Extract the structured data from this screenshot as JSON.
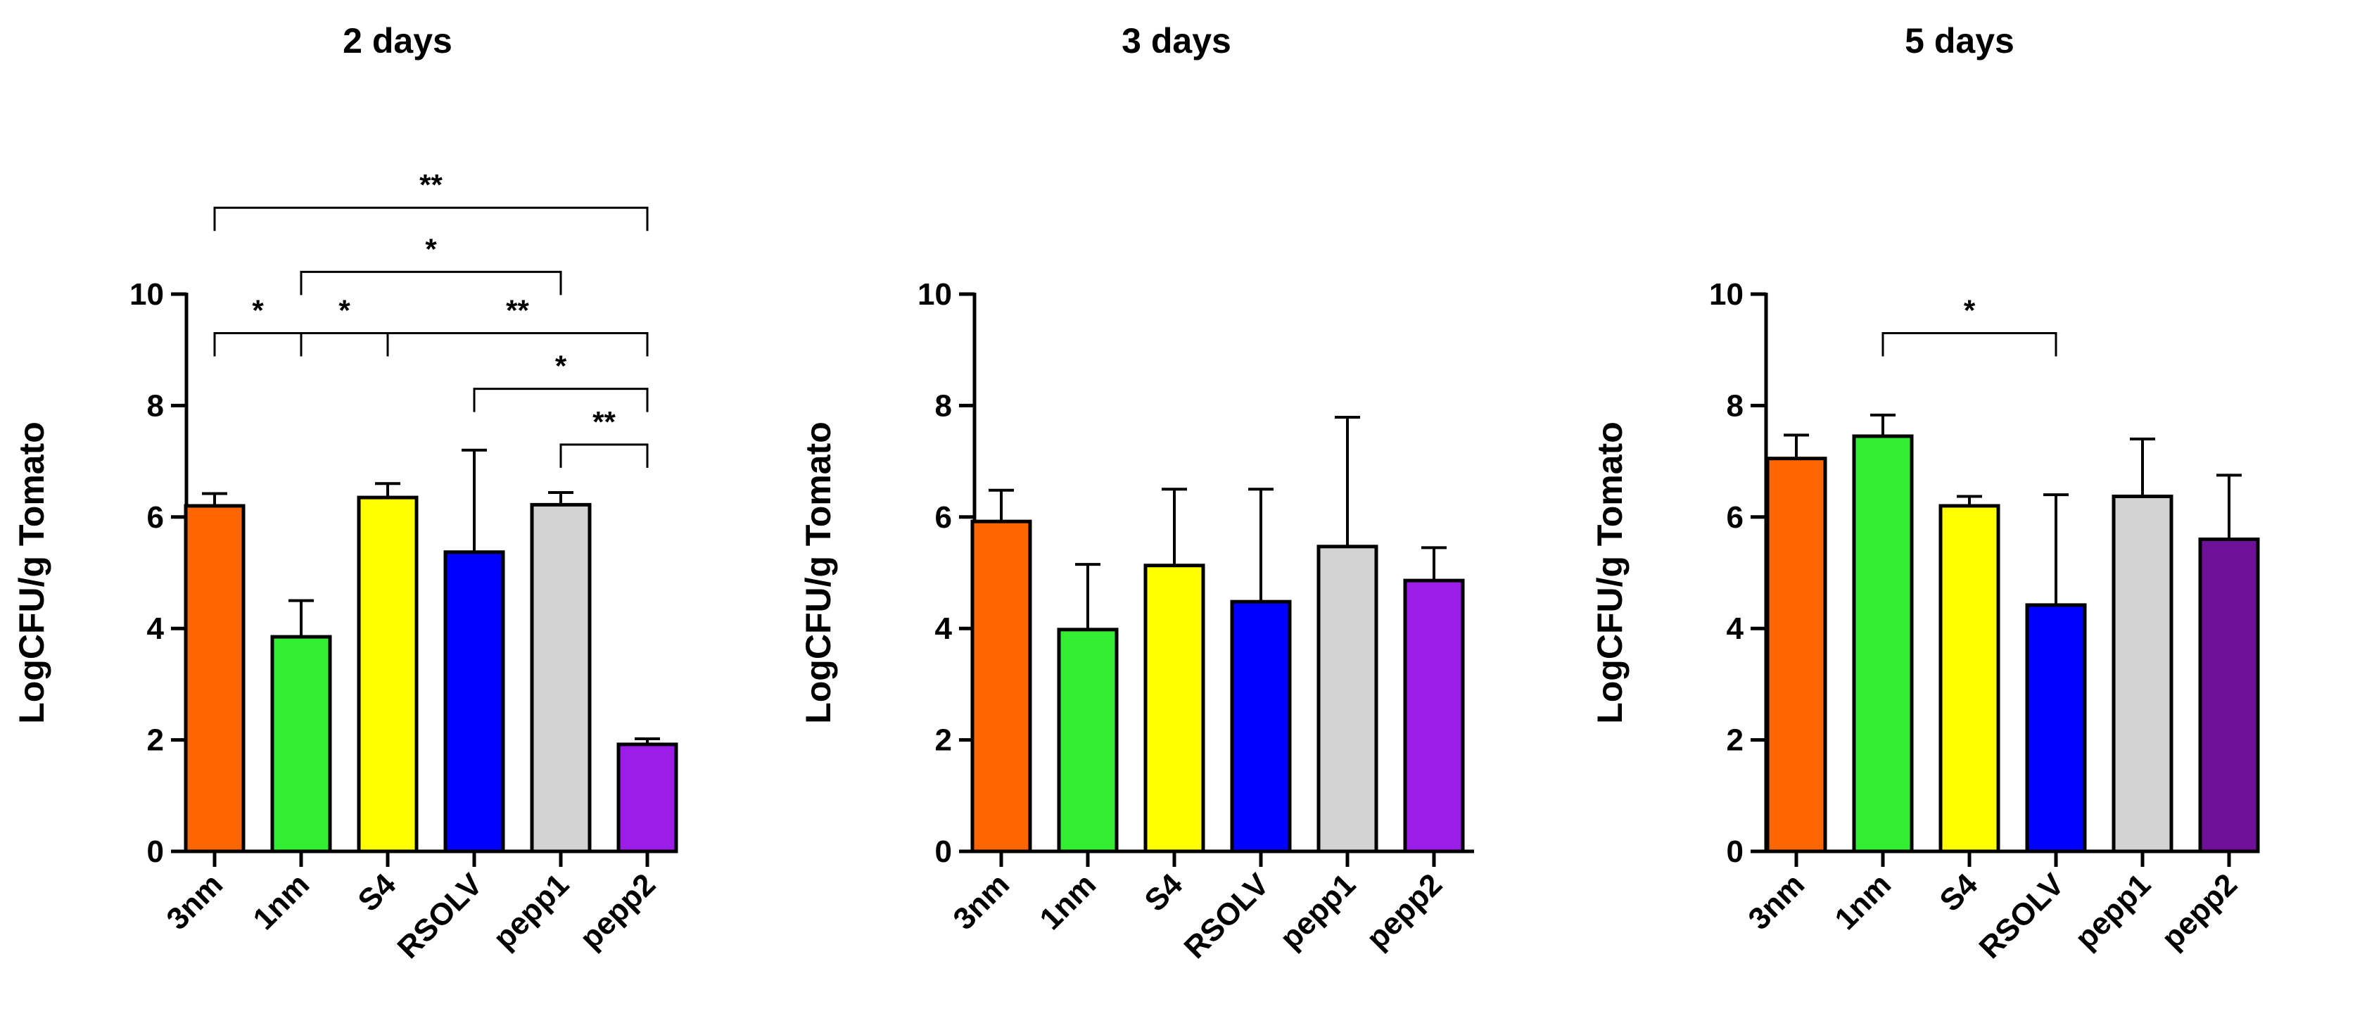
{
  "chart_data": [
    {
      "type": "bar",
      "title": "2 days",
      "xlabel": "",
      "ylabel": "LogCFU/g Tomato",
      "ylim": [
        0,
        10
      ],
      "yticks": [
        0,
        2,
        4,
        6,
        8,
        10
      ],
      "categories": [
        "3nm",
        "1nm",
        "S4",
        "RSOLV",
        "pepp1",
        "pepp2"
      ],
      "values": [
        6.2,
        3.85,
        6.35,
        5.37,
        6.22,
        1.92
      ],
      "errors": [
        0.22,
        0.65,
        0.25,
        1.83,
        0.22,
        0.1
      ],
      "colors": [
        "#ff6600",
        "#33ee33",
        "#ffff00",
        "#0000ff",
        "#d3d3d3",
        "#9b1de6"
      ],
      "significance": [
        {
          "from": 0,
          "to": 5,
          "label": "**",
          "y": 11.55
        },
        {
          "from": 1,
          "to": 4,
          "label": "*",
          "y": 10.4
        },
        {
          "from": 0,
          "to": 1,
          "label": "*",
          "y": 9.3
        },
        {
          "from": 1,
          "to": 2,
          "label": "*",
          "y": 9.3
        },
        {
          "from": 2,
          "to": 5,
          "label": "**",
          "y": 9.3
        },
        {
          "from": 3,
          "to": 5,
          "label": "*",
          "y": 8.3
        },
        {
          "from": 4,
          "to": 5,
          "label": "**",
          "y": 7.3
        }
      ]
    },
    {
      "type": "bar",
      "title": "3 days",
      "xlabel": "",
      "ylabel": "LogCFU/g Tomato",
      "ylim": [
        0,
        10
      ],
      "yticks": [
        0,
        2,
        4,
        6,
        8,
        10
      ],
      "categories": [
        "3nm",
        "1nm",
        "S4",
        "RSOLV",
        "pepp1",
        "pepp2"
      ],
      "values": [
        5.92,
        3.98,
        5.13,
        4.48,
        5.47,
        4.86
      ],
      "errors": [
        0.56,
        1.17,
        1.37,
        2.02,
        2.32,
        0.59
      ],
      "colors": [
        "#ff6600",
        "#33ee33",
        "#ffff00",
        "#0000ff",
        "#d3d3d3",
        "#9b1de6"
      ],
      "significance": []
    },
    {
      "type": "bar",
      "title": "5 days",
      "xlabel": "",
      "ylabel": "LogCFU/g Tomato",
      "ylim": [
        0,
        10
      ],
      "yticks": [
        0,
        2,
        4,
        6,
        8,
        10
      ],
      "categories": [
        "3nm",
        "1nm",
        "S4",
        "RSOLV",
        "pepp1",
        "pepp2"
      ],
      "values": [
        7.05,
        7.45,
        6.2,
        4.42,
        6.37,
        5.6
      ],
      "errors": [
        0.42,
        0.38,
        0.17,
        1.98,
        1.03,
        1.15
      ],
      "colors": [
        "#ff6600",
        "#33ee33",
        "#ffff00",
        "#0000ff",
        "#d3d3d3",
        "#6e1098"
      ],
      "significance": [
        {
          "from": 1,
          "to": 3,
          "label": "*",
          "y": 9.3
        }
      ]
    }
  ]
}
